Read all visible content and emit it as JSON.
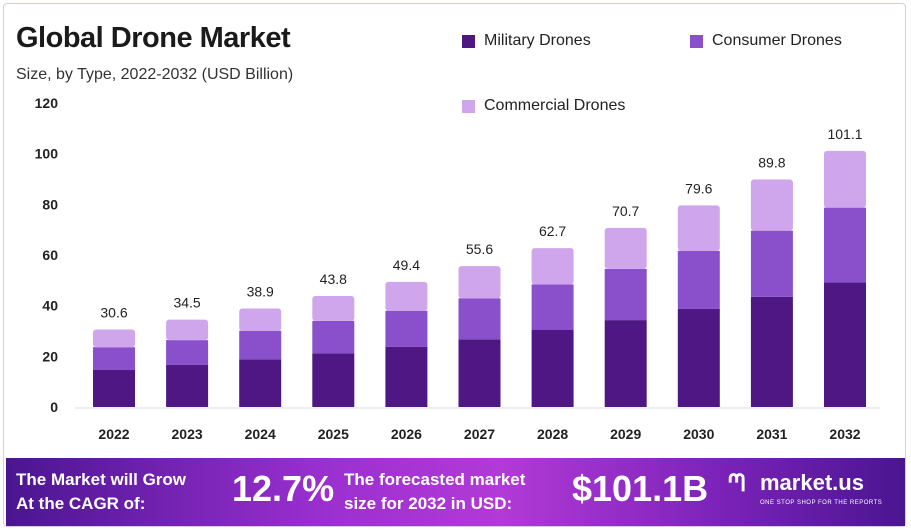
{
  "chart_data": {
    "type": "bar",
    "stacked": true,
    "title": "Global Drone Market",
    "subtitle": "Size, by Type, 2022-2032 (USD Billion)",
    "categories": [
      "2022",
      "2023",
      "2024",
      "2025",
      "2026",
      "2027",
      "2028",
      "2029",
      "2030",
      "2031",
      "2032"
    ],
    "series": [
      {
        "name": "Military Drones",
        "color": "#4e1783",
        "values": [
          14.6,
          16.6,
          18.8,
          21.2,
          23.8,
          26.7,
          30.4,
          34.3,
          38.7,
          43.5,
          49.2
        ]
      },
      {
        "name": "Consumer Drones",
        "color": "#8a4fcb",
        "values": [
          9.0,
          9.8,
          11.3,
          12.8,
          14.2,
          16.2,
          18.0,
          20.2,
          22.9,
          26.1,
          29.5
        ]
      },
      {
        "name": "Commercial Drones",
        "color": "#cfa6ec",
        "values": [
          7.0,
          8.1,
          8.8,
          9.8,
          11.4,
          12.7,
          14.3,
          16.2,
          18.0,
          20.2,
          22.4
        ]
      }
    ],
    "totals": [
      "30.6",
      "34.5",
      "38.9",
      "43.8",
      "49.4",
      "55.6",
      "62.7",
      "70.7",
      "79.6",
      "89.8",
      "101.1"
    ],
    "yticks": [
      "0",
      "20",
      "40",
      "60",
      "80",
      "100",
      "120"
    ],
    "ylim": [
      0,
      120
    ],
    "grid": false,
    "legend_position": "top-right"
  },
  "banner": {
    "cagr_label_line1": "The Market will Grow",
    "cagr_label_line2": "At the CAGR of:",
    "cagr_value": "12.7%",
    "forecast_label_line1": "The forecasted market",
    "forecast_label_line2": "size for 2032 in USD:",
    "forecast_value": "$101.1B",
    "logo_text": "market.us",
    "logo_tagline": "ONE STOP SHOP FOR THE REPORTS"
  }
}
